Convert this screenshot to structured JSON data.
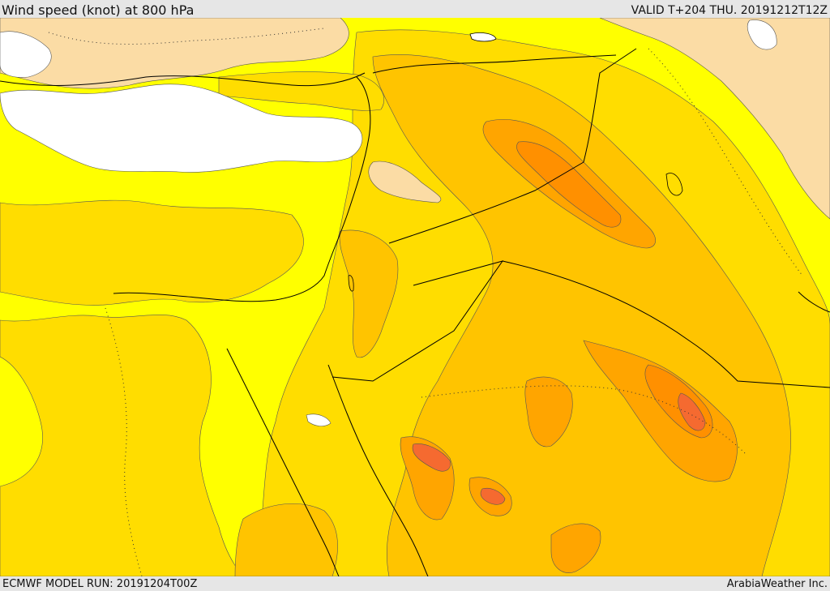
{
  "header": {
    "title": "Wind speed (knot) at 800 hPa",
    "valid": "VALID T+204 THU. 20191212T12Z"
  },
  "footer": {
    "model_run": "ECMWF MODEL RUN: 20191204T00Z",
    "credit": "ArabiaWeather Inc."
  },
  "colors": {
    "calm": "#ffffff",
    "light": "#fbdca5",
    "yellow": "#ffff00",
    "gold": "#ffdd00",
    "amber": "#ffc400",
    "orange": "#ffa500",
    "dark_orange": "#ff9000",
    "red_orange": "#f56a30",
    "land_line": "#000000"
  }
}
